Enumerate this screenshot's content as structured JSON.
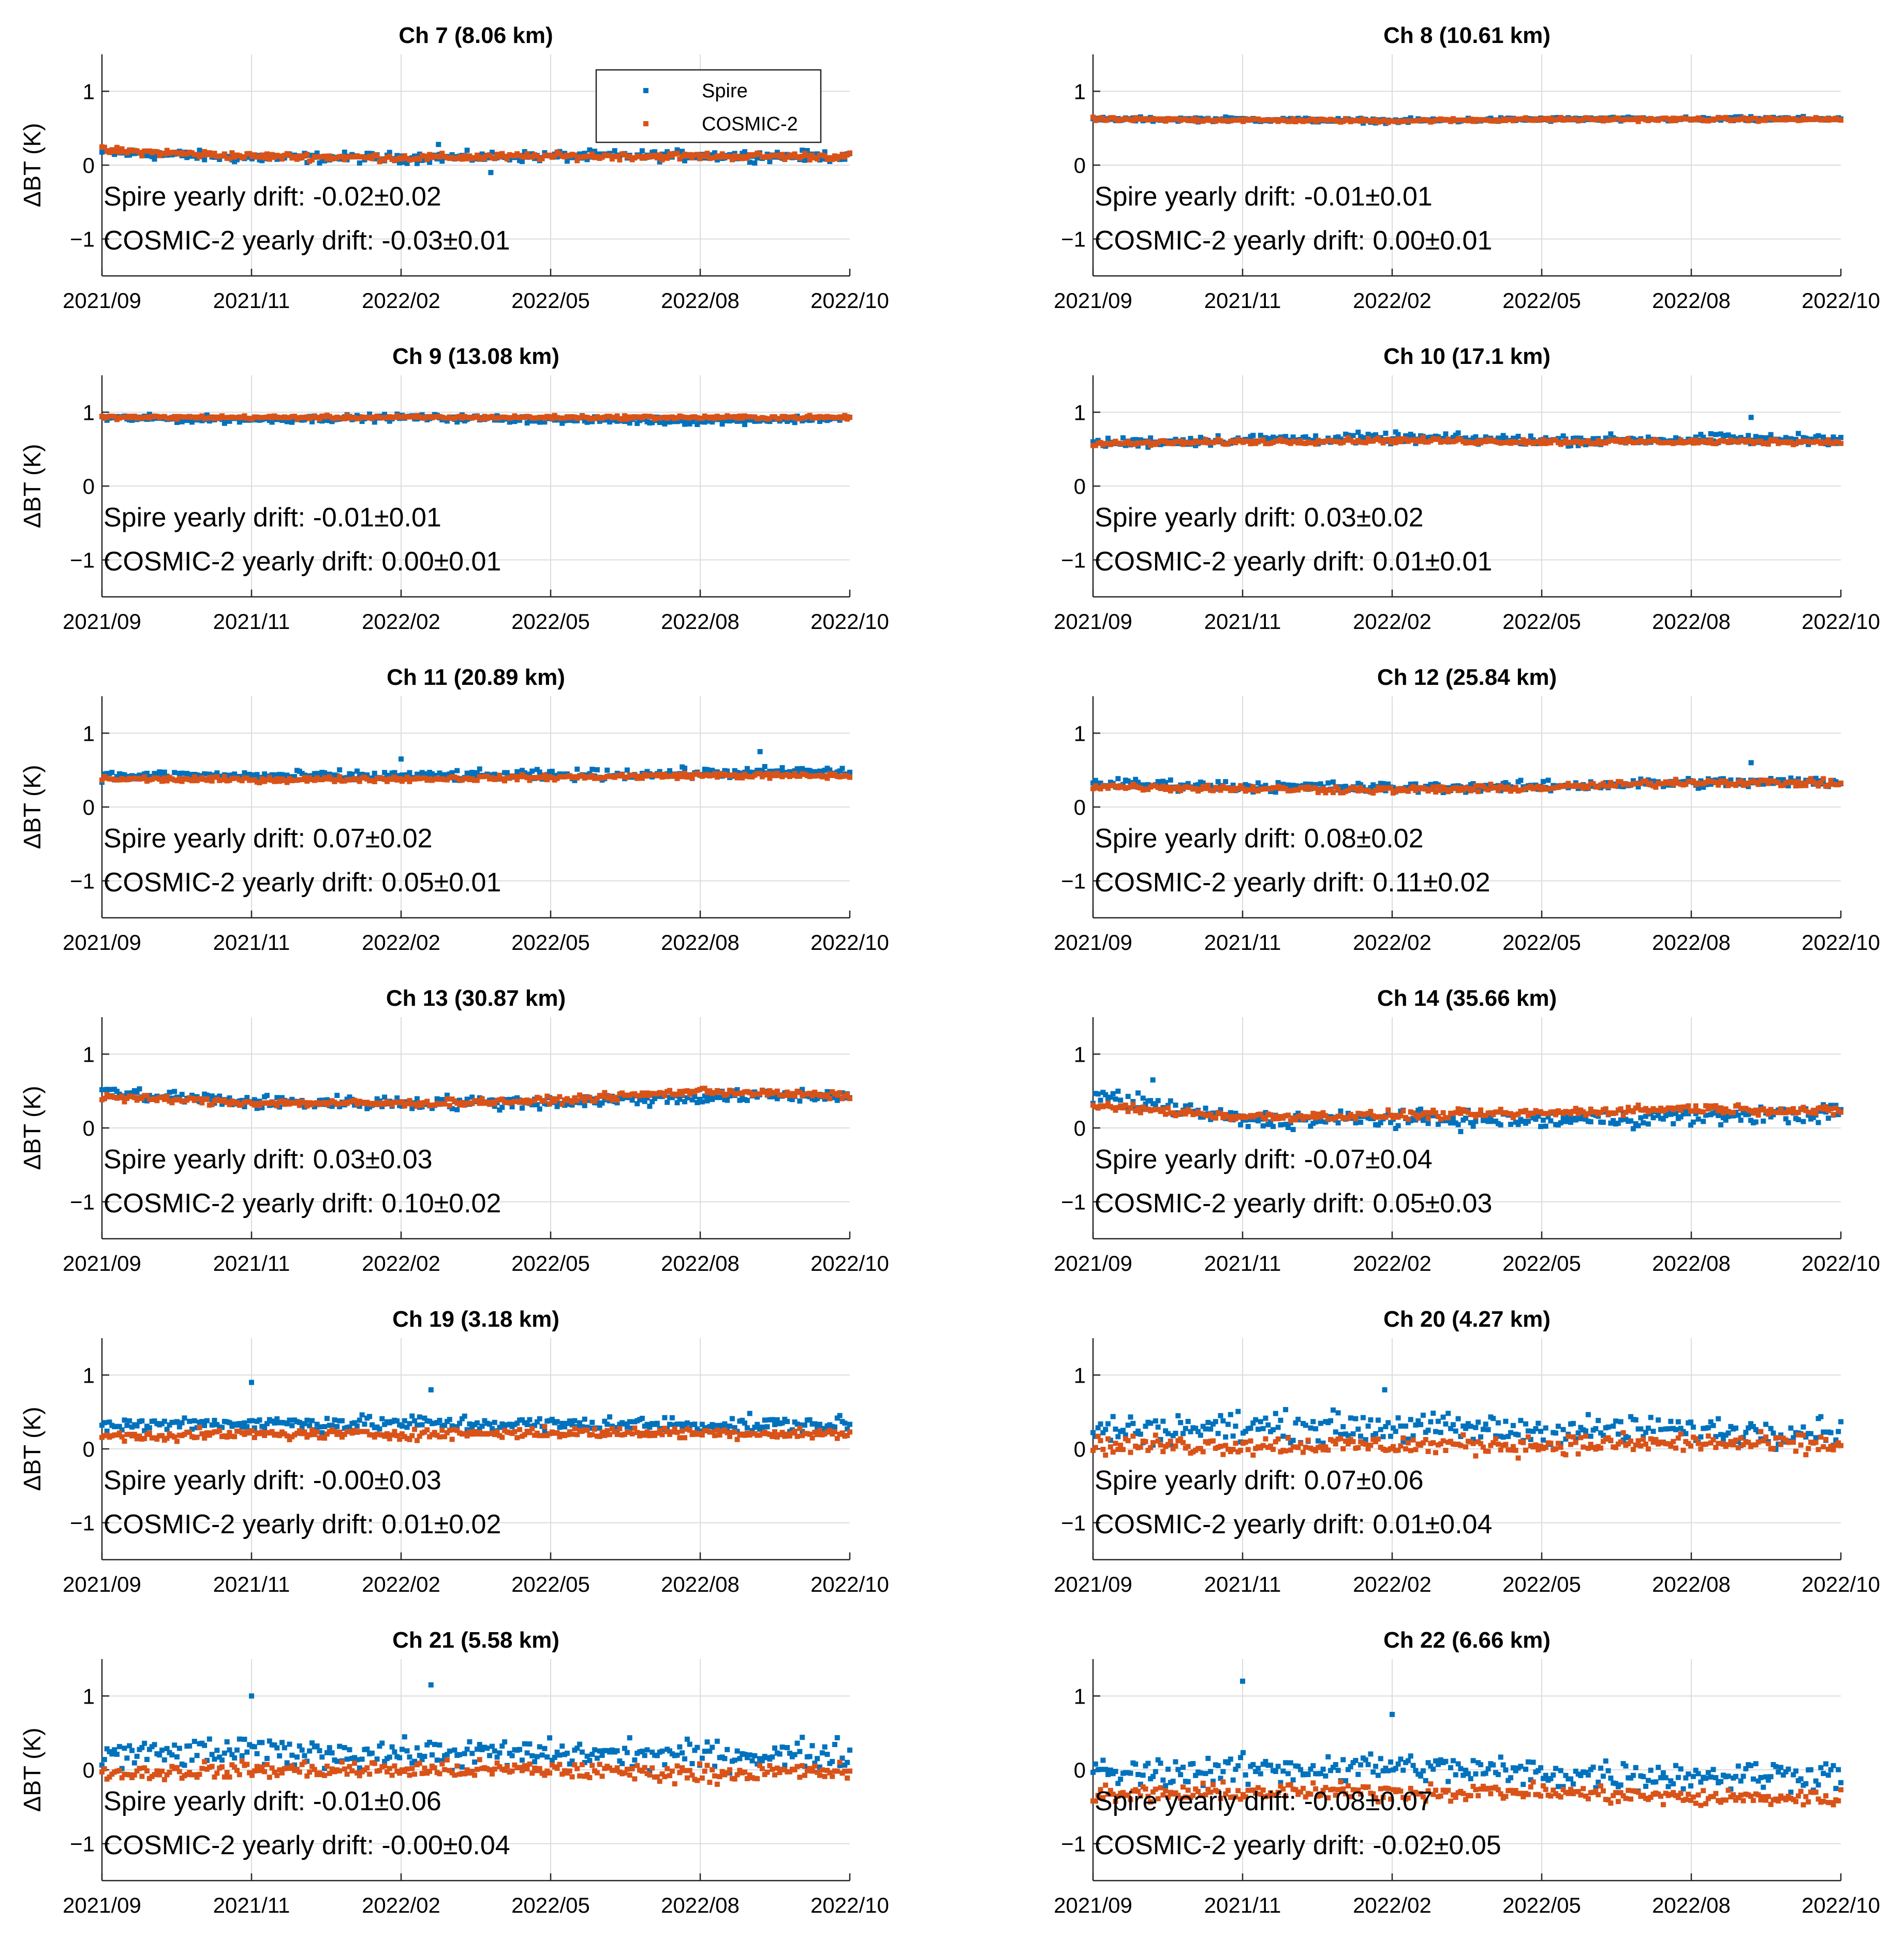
{
  "figure": {
    "ylabel": "ΔBT (K)",
    "legend": {
      "position": "top-right of first panel",
      "entries": [
        {
          "name": "Spire",
          "color": "#0072BD"
        },
        {
          "name": "COSMIC-2",
          "color": "#D95319"
        }
      ]
    }
  },
  "chart_data": [
    {
      "type": "scatter",
      "title": "Ch 7 (8.06 km)",
      "ylabel": "ΔBT (K)",
      "ylim": [
        -1.5,
        1.5
      ],
      "yticks": [
        "1",
        "0",
        "−1"
      ],
      "xlim": [
        "2021/09",
        "2022/10"
      ],
      "xticks": [
        "2021/09",
        "2021/11",
        "2022/02",
        "2022/05",
        "2022/08",
        "2022/10"
      ],
      "grid": true,
      "series": [
        {
          "name": "Spire",
          "color": "#0072BD",
          "mean": [
            0.17,
            0.1,
            0.1,
            0.12,
            0.13,
            0.12
          ],
          "spread": 0.06,
          "outliers": [
            [
              0.45,
              0.28
            ],
            [
              0.52,
              -0.1
            ]
          ]
        },
        {
          "name": "COSMIC-2",
          "color": "#D95319",
          "mean": [
            0.2,
            0.12,
            0.1,
            0.12,
            0.12,
            0.12
          ],
          "spread": 0.04,
          "outliers": []
        }
      ],
      "annotations": [
        "Spire yearly drift: -0.02±0.02",
        "COSMIC-2 yearly drift: -0.03±0.01"
      ]
    },
    {
      "type": "scatter",
      "title": "Ch 8 (10.61 km)",
      "ylabel": "",
      "ylim": [
        -1.5,
        1.5
      ],
      "yticks": [
        "1",
        "0",
        "−1"
      ],
      "xlim": [
        "2021/09",
        "2022/10"
      ],
      "xticks": [
        "2021/09",
        "2021/11",
        "2022/02",
        "2022/05",
        "2022/08",
        "2022/10"
      ],
      "grid": true,
      "series": [
        {
          "name": "Spire",
          "color": "#0072BD",
          "mean": [
            0.62,
            0.62,
            0.6,
            0.62,
            0.62,
            0.63
          ],
          "spread": 0.025,
          "outliers": []
        },
        {
          "name": "COSMIC-2",
          "color": "#D95319",
          "mean": [
            0.62,
            0.61,
            0.6,
            0.62,
            0.62,
            0.62
          ],
          "spread": 0.02,
          "outliers": []
        }
      ],
      "annotations": [
        "Spire yearly drift: -0.01±0.01",
        "COSMIC-2 yearly drift: 0.00±0.01"
      ]
    },
    {
      "type": "scatter",
      "title": "Ch 9 (13.08 km)",
      "ylabel": "ΔBT (K)",
      "ylim": [
        -1.5,
        1.5
      ],
      "yticks": [
        "1",
        "0",
        "−1"
      ],
      "xlim": [
        "2021/09",
        "2022/10"
      ],
      "xticks": [
        "2021/09",
        "2021/11",
        "2022/02",
        "2022/05",
        "2022/08",
        "2022/10"
      ],
      "grid": true,
      "series": [
        {
          "name": "Spire",
          "color": "#0072BD",
          "mean": [
            0.92,
            0.9,
            0.93,
            0.9,
            0.88,
            0.92
          ],
          "spread": 0.04,
          "outliers": []
        },
        {
          "name": "COSMIC-2",
          "color": "#D95319",
          "mean": [
            0.93,
            0.93,
            0.93,
            0.93,
            0.93,
            0.93
          ],
          "spread": 0.02,
          "outliers": []
        }
      ],
      "annotations": [
        "Spire yearly drift: -0.01±0.01",
        "COSMIC-2 yearly drift: 0.00±0.01"
      ]
    },
    {
      "type": "scatter",
      "title": "Ch 10 (17.1 km)",
      "ylabel": "",
      "ylim": [
        -1.5,
        1.5
      ],
      "yticks": [
        "1",
        "0",
        "−1"
      ],
      "xlim": [
        "2021/09",
        "2022/10"
      ],
      "xticks": [
        "2021/09",
        "2021/11",
        "2022/02",
        "2022/05",
        "2022/08",
        "2022/10"
      ],
      "grid": true,
      "series": [
        {
          "name": "Spire",
          "color": "#0072BD",
          "mean": [
            0.58,
            0.63,
            0.65,
            0.62,
            0.63,
            0.64
          ],
          "spread": 0.06,
          "outliers": [
            [
              0.88,
              0.93
            ]
          ]
        },
        {
          "name": "COSMIC-2",
          "color": "#D95319",
          "mean": [
            0.57,
            0.6,
            0.62,
            0.6,
            0.6,
            0.6
          ],
          "spread": 0.03,
          "outliers": []
        }
      ],
      "annotations": [
        "Spire yearly drift: 0.03±0.02",
        "COSMIC-2 yearly drift: 0.01±0.01"
      ]
    },
    {
      "type": "scatter",
      "title": "Ch 11 (20.89 km)",
      "ylabel": "ΔBT (K)",
      "ylim": [
        -1.5,
        1.5
      ],
      "yticks": [
        "1",
        "0",
        "−1"
      ],
      "xlim": [
        "2021/09",
        "2022/10"
      ],
      "xticks": [
        "2021/09",
        "2021/11",
        "2022/02",
        "2022/05",
        "2022/08",
        "2022/10"
      ],
      "grid": true,
      "series": [
        {
          "name": "Spire",
          "color": "#0072BD",
          "mean": [
            0.42,
            0.42,
            0.42,
            0.43,
            0.46,
            0.48
          ],
          "spread": 0.06,
          "outliers": [
            [
              0.4,
              0.65
            ],
            [
              0.88,
              0.75
            ]
          ]
        },
        {
          "name": "COSMIC-2",
          "color": "#D95319",
          "mean": [
            0.38,
            0.37,
            0.38,
            0.4,
            0.43,
            0.42
          ],
          "spread": 0.03,
          "outliers": []
        }
      ],
      "annotations": [
        "Spire yearly drift: 0.07±0.02",
        "COSMIC-2 yearly drift: 0.05±0.01"
      ]
    },
    {
      "type": "scatter",
      "title": "Ch 12 (25.84 km)",
      "ylabel": "",
      "ylim": [
        -1.5,
        1.5
      ],
      "yticks": [
        "1",
        "0",
        "−1"
      ],
      "xlim": [
        "2021/09",
        "2022/10"
      ],
      "xticks": [
        "2021/09",
        "2021/11",
        "2022/02",
        "2022/05",
        "2022/08",
        "2022/10"
      ],
      "grid": true,
      "series": [
        {
          "name": "Spire",
          "color": "#0072BD",
          "mean": [
            0.32,
            0.28,
            0.26,
            0.28,
            0.33,
            0.34
          ],
          "spread": 0.06,
          "outliers": [
            [
              0.88,
              0.6
            ]
          ]
        },
        {
          "name": "COSMIC-2",
          "color": "#D95319",
          "mean": [
            0.28,
            0.25,
            0.23,
            0.26,
            0.34,
            0.32
          ],
          "spread": 0.04,
          "outliers": []
        }
      ],
      "annotations": [
        "Spire yearly drift: 0.08±0.02",
        "COSMIC-2 yearly drift: 0.11±0.02"
      ]
    },
    {
      "type": "scatter",
      "title": "Ch 13 (30.87 km)",
      "ylabel": "ΔBT (K)",
      "ylim": [
        -1.5,
        1.5
      ],
      "yticks": [
        "1",
        "0",
        "−1"
      ],
      "xlim": [
        "2021/09",
        "2022/10"
      ],
      "xticks": [
        "2021/09",
        "2021/11",
        "2022/02",
        "2022/05",
        "2022/08",
        "2022/10"
      ],
      "grid": true,
      "series": [
        {
          "name": "Spire",
          "color": "#0072BD",
          "mean": [
            0.48,
            0.35,
            0.34,
            0.35,
            0.42,
            0.44
          ],
          "spread": 0.08,
          "outliers": []
        },
        {
          "name": "COSMIC-2",
          "color": "#D95319",
          "mean": [
            0.42,
            0.34,
            0.33,
            0.37,
            0.5,
            0.43
          ],
          "spread": 0.04,
          "outliers": []
        }
      ],
      "annotations": [
        "Spire yearly drift: 0.03±0.03",
        "COSMIC-2 yearly drift: 0.10±0.02"
      ]
    },
    {
      "type": "scatter",
      "title": "Ch 14 (35.66 km)",
      "ylabel": "",
      "ylim": [
        -1.5,
        1.5
      ],
      "yticks": [
        "1",
        "0",
        "−1"
      ],
      "xlim": [
        "2021/09",
        "2022/10"
      ],
      "xticks": [
        "2021/09",
        "2021/11",
        "2022/02",
        "2022/05",
        "2022/08",
        "2022/10"
      ],
      "grid": true,
      "series": [
        {
          "name": "Spire",
          "color": "#0072BD",
          "mean": [
            0.45,
            0.1,
            0.12,
            0.1,
            0.15,
            0.2
          ],
          "spread": 0.1,
          "outliers": [
            [
              0.08,
              0.65
            ]
          ]
        },
        {
          "name": "COSMIC-2",
          "color": "#D95319",
          "mean": [
            0.3,
            0.15,
            0.17,
            0.2,
            0.27,
            0.22
          ],
          "spread": 0.05,
          "outliers": []
        }
      ],
      "annotations": [
        "Spire yearly drift: -0.07±0.04",
        "COSMIC-2 yearly drift: 0.05±0.03"
      ]
    },
    {
      "type": "scatter",
      "title": "Ch 19 (3.18 km)",
      "ylabel": "ΔBT (K)",
      "ylim": [
        -1.5,
        1.5
      ],
      "yticks": [
        "1",
        "0",
        "−1"
      ],
      "xlim": [
        "2021/09",
        "2022/10"
      ],
      "xticks": [
        "2021/09",
        "2021/11",
        "2022/02",
        "2022/05",
        "2022/08",
        "2022/10"
      ],
      "grid": true,
      "series": [
        {
          "name": "Spire",
          "color": "#0072BD",
          "mean": [
            0.32,
            0.35,
            0.35,
            0.33,
            0.33,
            0.33
          ],
          "spread": 0.09,
          "outliers": [
            [
              0.2,
              0.9
            ],
            [
              0.44,
              0.8
            ]
          ]
        },
        {
          "name": "COSMIC-2",
          "color": "#D95319",
          "mean": [
            0.17,
            0.2,
            0.2,
            0.22,
            0.22,
            0.2
          ],
          "spread": 0.06,
          "outliers": []
        }
      ],
      "annotations": [
        "Spire yearly drift: -0.00±0.03",
        "COSMIC-2 yearly drift: 0.01±0.02"
      ]
    },
    {
      "type": "scatter",
      "title": "Ch 20 (4.27 km)",
      "ylabel": "",
      "ylim": [
        -1.5,
        1.5
      ],
      "yticks": [
        "1",
        "0",
        "−1"
      ],
      "xlim": [
        "2021/09",
        "2022/10"
      ],
      "xticks": [
        "2021/09",
        "2021/11",
        "2022/02",
        "2022/05",
        "2022/08",
        "2022/10"
      ],
      "grid": true,
      "series": [
        {
          "name": "Spire",
          "color": "#0072BD",
          "mean": [
            0.25,
            0.3,
            0.3,
            0.25,
            0.25,
            0.25
          ],
          "spread": 0.17,
          "outliers": [
            [
              0.39,
              0.8
            ]
          ]
        },
        {
          "name": "COSMIC-2",
          "color": "#D95319",
          "mean": [
            0.05,
            0.05,
            0.05,
            0.05,
            0.08,
            0.05
          ],
          "spread": 0.11,
          "outliers": []
        }
      ],
      "annotations": [
        "Spire yearly drift: 0.07±0.06",
        "COSMIC-2 yearly drift: 0.01±0.04"
      ]
    },
    {
      "type": "scatter",
      "title": "Ch 21 (5.58 km)",
      "ylabel": "ΔBT (K)",
      "ylim": [
        -1.5,
        1.5
      ],
      "yticks": [
        "1",
        "0",
        "−1"
      ],
      "xlim": [
        "2021/09",
        "2022/10"
      ],
      "xticks": [
        "2021/09",
        "2021/11",
        "2022/02",
        "2022/05",
        "2022/08",
        "2022/10"
      ],
      "grid": true,
      "series": [
        {
          "name": "Spire",
          "color": "#0072BD",
          "mean": [
            0.2,
            0.25,
            0.22,
            0.22,
            0.2,
            0.22
          ],
          "spread": 0.16,
          "outliers": [
            [
              0.2,
              1.0
            ],
            [
              0.44,
              1.15
            ]
          ]
        },
        {
          "name": "COSMIC-2",
          "color": "#D95319",
          "mean": [
            -0.05,
            0.0,
            0.0,
            0.0,
            -0.05,
            -0.02
          ],
          "spread": 0.1,
          "outliers": []
        }
      ],
      "annotations": [
        "Spire yearly drift: -0.01±0.06",
        "COSMIC-2 yearly drift: -0.00±0.04"
      ]
    },
    {
      "type": "scatter",
      "title": "Ch 22 (6.66 km)",
      "ylabel": "",
      "ylim": [
        -1.5,
        1.5
      ],
      "yticks": [
        "1",
        "0",
        "−1"
      ],
      "xlim": [
        "2021/09",
        "2022/10"
      ],
      "xticks": [
        "2021/09",
        "2021/11",
        "2022/02",
        "2022/05",
        "2022/08",
        "2022/10"
      ],
      "grid": true,
      "series": [
        {
          "name": "Spire",
          "color": "#0072BD",
          "mean": [
            -0.05,
            0.0,
            0.05,
            -0.05,
            -0.08,
            -0.05
          ],
          "spread": 0.17,
          "outliers": [
            [
              0.2,
              1.2
            ],
            [
              0.4,
              0.75
            ]
          ]
        },
        {
          "name": "COSMIC-2",
          "color": "#D95319",
          "mean": [
            -0.35,
            -0.3,
            -0.3,
            -0.3,
            -0.38,
            -0.38
          ],
          "spread": 0.1,
          "outliers": []
        }
      ],
      "annotations": [
        "Spire yearly drift: -0.08±0.07",
        "COSMIC-2 yearly drift: -0.02±0.05"
      ]
    }
  ]
}
